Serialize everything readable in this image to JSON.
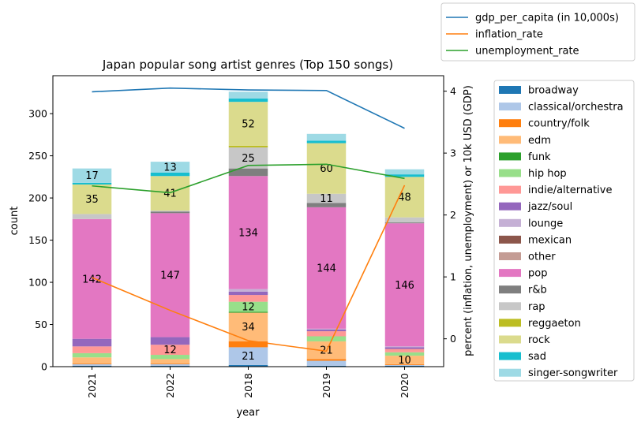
{
  "chart_data": {
    "type": "bar",
    "stacked": true,
    "title": "Japan popular song artist genres (Top 150 songs)",
    "xlabel": "year",
    "ylabel": "count",
    "y2label": "percent (inflation, unemployment) or 10k USD (GDP)",
    "categories": [
      "2021",
      "2022",
      "2018",
      "2019",
      "2020"
    ],
    "ylim": [
      0,
      345
    ],
    "yticks": [
      0,
      50,
      100,
      150,
      200,
      250,
      300
    ],
    "y2lim": [
      -0.45,
      4.25
    ],
    "y2ticks": [
      0,
      1,
      2,
      3,
      4
    ],
    "grid": false,
    "legend_placement": "right",
    "series": [
      {
        "name": "broadway",
        "color": "#1f77b4",
        "values": [
          1,
          1,
          2,
          1,
          1
        ]
      },
      {
        "name": "classical/orchestra",
        "color": "#aec7e8",
        "values": [
          2,
          2,
          21,
          6,
          1
        ]
      },
      {
        "name": "country/folk",
        "color": "#ff7f0e",
        "values": [
          1,
          1,
          7,
          2,
          1
        ]
      },
      {
        "name": "edm",
        "color": "#ffbb78",
        "values": [
          7,
          5,
          34,
          21,
          10
        ]
      },
      {
        "name": "funk",
        "color": "#2ca02c",
        "values": [
          0,
          0,
          1,
          0,
          0
        ]
      },
      {
        "name": "hip hop",
        "color": "#98df8a",
        "values": [
          5,
          5,
          12,
          6,
          4
        ]
      },
      {
        "name": "indie/alternative",
        "color": "#ff9896",
        "values": [
          8,
          12,
          8,
          6,
          4
        ]
      },
      {
        "name": "jazz/soul",
        "color": "#9467bd",
        "values": [
          9,
          9,
          4,
          2,
          2
        ]
      },
      {
        "name": "lounge",
        "color": "#c5b0d5",
        "values": [
          0,
          0,
          3,
          1,
          1
        ]
      },
      {
        "name": "mexican",
        "color": "#8c564b",
        "values": [
          0,
          0,
          0,
          0,
          0
        ]
      },
      {
        "name": "other",
        "color": "#c49c94",
        "values": [
          0,
          0,
          0,
          0,
          0
        ]
      },
      {
        "name": "pop",
        "color": "#e377c2",
        "values": [
          142,
          147,
          134,
          144,
          146
        ]
      },
      {
        "name": "r&b",
        "color": "#7f7f7f",
        "values": [
          0,
          2,
          9,
          5,
          1
        ]
      },
      {
        "name": "rap",
        "color": "#c7c7c7",
        "values": [
          6,
          1,
          25,
          11,
          6
        ]
      },
      {
        "name": "reggaeton",
        "color": "#bcbd22",
        "values": [
          0,
          0,
          2,
          0,
          0
        ]
      },
      {
        "name": "rock",
        "color": "#dbdb8d",
        "values": [
          35,
          41,
          52,
          60,
          48
        ]
      },
      {
        "name": "sad",
        "color": "#17becf",
        "values": [
          2,
          4,
          4,
          3,
          3
        ]
      },
      {
        "name": "singer-songwriter",
        "color": "#9edae5",
        "values": [
          17,
          13,
          8,
          8,
          6
        ]
      }
    ],
    "data_labels": [
      {
        "series": "pop",
        "values": [
          142,
          147,
          134,
          144,
          146
        ]
      },
      {
        "series": "rock",
        "values": [
          35,
          41,
          52,
          60,
          48
        ]
      },
      {
        "series": "singer-songwriter",
        "values": [
          17,
          13,
          null,
          null,
          null
        ]
      },
      {
        "series": "indie/alternative",
        "values": [
          null,
          12,
          null,
          null,
          null
        ]
      },
      {
        "series": "edm",
        "values": [
          null,
          null,
          34,
          21,
          10
        ]
      },
      {
        "series": "classical/orchestra",
        "values": [
          null,
          null,
          21,
          null,
          null
        ]
      },
      {
        "series": "hip hop",
        "values": [
          null,
          null,
          12,
          null,
          null
        ]
      },
      {
        "series": "rap",
        "values": [
          null,
          null,
          25,
          11,
          null
        ]
      }
    ],
    "line_series": [
      {
        "name": "gdp_per_capita (in 10,000s)",
        "color": "#1f77b4",
        "values": [
          3.99,
          4.05,
          4.02,
          4.01,
          3.4
        ]
      },
      {
        "name": "inflation_rate",
        "color": "#ff7f0e",
        "values": [
          0.99,
          0.46,
          -0.03,
          -0.2,
          2.48
        ]
      },
      {
        "name": "unemployment_rate",
        "color": "#2ca02c",
        "values": [
          2.47,
          2.36,
          2.8,
          2.82,
          2.59
        ]
      }
    ]
  }
}
